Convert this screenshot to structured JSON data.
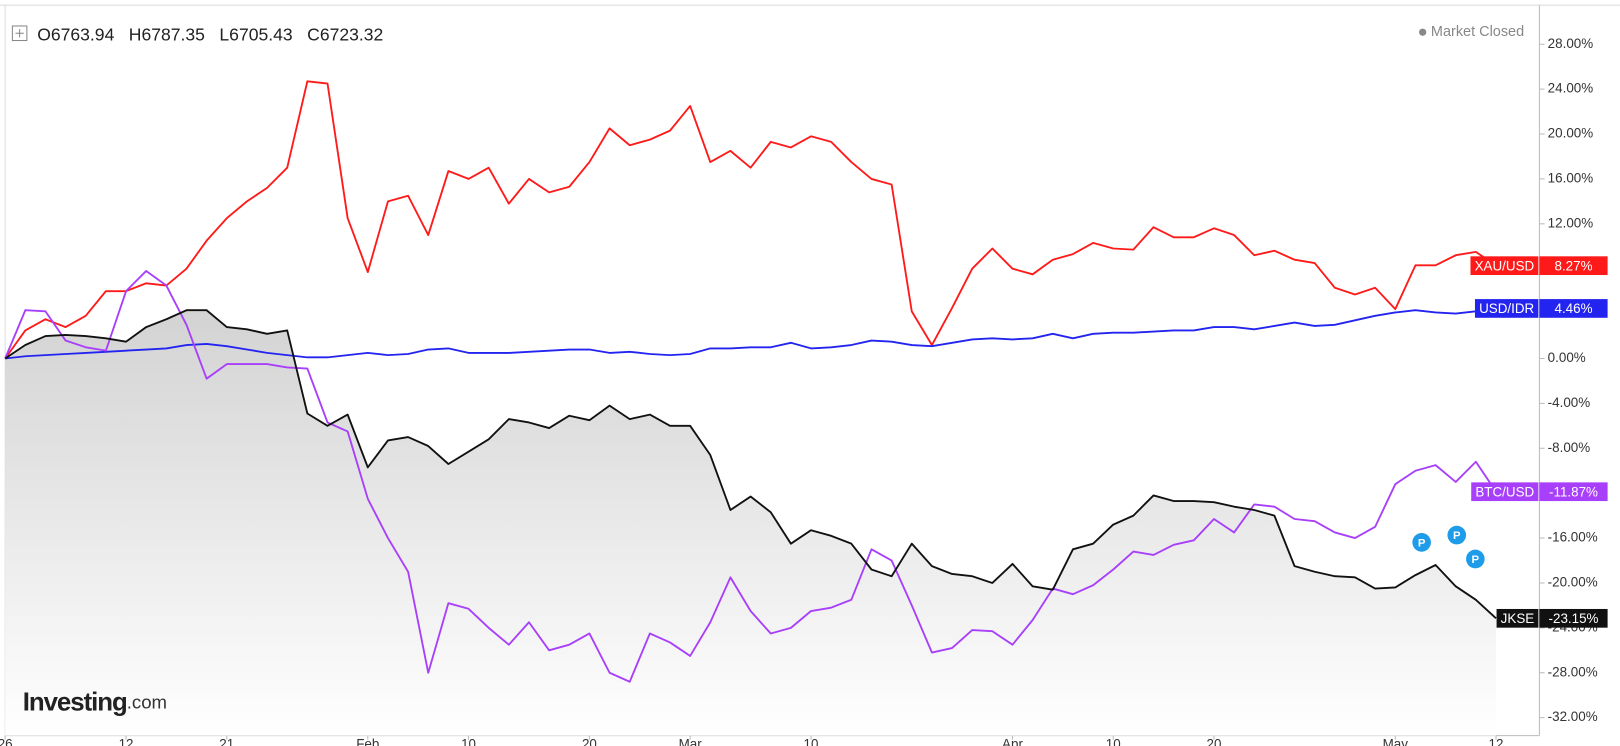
{
  "chart_data": {
    "type": "line",
    "ohlc": [
      {
        "key": "O",
        "value": "6763.94"
      },
      {
        "key": "H",
        "value": "6787.35"
      },
      {
        "key": "L",
        "value": "6705.43"
      },
      {
        "key": "C",
        "value": "6723.32"
      }
    ],
    "status": "Market Closed",
    "logo": {
      "name": "Investing",
      "suffix": ".com"
    },
    "markers": [
      "P",
      "P",
      "P"
    ],
    "categories": [
      "26",
      null,
      null,
      null,
      null,
      null,
      "12",
      null,
      null,
      null,
      null,
      "21",
      null,
      null,
      null,
      null,
      null,
      null,
      "Feb",
      null,
      null,
      null,
      null,
      "10",
      null,
      null,
      null,
      null,
      null,
      "20",
      null,
      null,
      null,
      null,
      "Mar",
      null,
      null,
      null,
      null,
      null,
      "10",
      null,
      null,
      null,
      null,
      null,
      null,
      null,
      null,
      null,
      "Apr",
      null,
      null,
      null,
      null,
      "10",
      null,
      null,
      null,
      null,
      "20",
      null,
      null,
      null,
      null,
      null,
      null,
      null,
      null,
      "May",
      null,
      null,
      null,
      null,
      "12"
    ],
    "ylim": [
      -33.6,
      31.2
    ],
    "yticks": [
      {
        "value": 28,
        "label": "28.00%"
      },
      {
        "value": 24,
        "label": "24.00%"
      },
      {
        "value": 20,
        "label": "20.00%"
      },
      {
        "value": 16,
        "label": "16.00%"
      },
      {
        "value": 12,
        "label": "12.00%"
      },
      {
        "value": 8,
        "label": "8.00%"
      },
      {
        "value": 4,
        "label": "4.00%"
      },
      {
        "value": 0,
        "label": "0.00%"
      },
      {
        "value": -4,
        "label": "-4.00%"
      },
      {
        "value": -8,
        "label": "-8.00%"
      },
      {
        "value": -12,
        "label": "-12.00%"
      },
      {
        "value": -16,
        "label": "-16.00%"
      },
      {
        "value": -20,
        "label": "-20.00%"
      },
      {
        "value": -24,
        "label": "-24.00%"
      },
      {
        "value": -28,
        "label": "-28.00%"
      },
      {
        "value": -32,
        "label": "-32.00%"
      }
    ],
    "grid": false,
    "series": [
      {
        "name": "XAU/USD",
        "color": "#ff1a1a",
        "values": [
          0,
          2.5,
          3.5,
          2.8,
          3.8,
          6,
          6,
          6.7,
          6.5,
          8,
          10.5,
          12.5,
          14,
          15.2,
          17,
          24.7,
          24.5,
          12.5,
          7.7,
          14,
          14.5,
          11,
          16.7,
          16,
          17,
          13.8,
          16,
          14.8,
          15.3,
          17.5,
          20.5,
          19,
          19.5,
          20.3,
          22.5,
          17.5,
          18.5,
          17,
          19.3,
          18.8,
          19.8,
          19.3,
          17.5,
          16,
          15.5,
          4.2,
          1.2,
          4.5,
          8,
          9.8,
          8,
          7.5,
          8.8,
          9.3,
          10.3,
          9.8,
          9.7,
          11.7,
          10.8,
          10.8,
          11.6,
          11,
          9.2,
          9.6,
          8.8,
          8.5,
          6.3,
          5.7,
          6.3,
          4.4,
          8.3,
          8.3,
          9.2,
          9.5,
          8.27
        ],
        "value_labels": [
          null,
          null,
          null,
          null,
          null,
          null,
          null,
          null,
          null,
          null,
          null,
          null,
          null,
          null,
          null,
          null,
          null,
          null,
          null,
          null,
          null,
          null,
          null,
          null,
          null,
          null,
          null,
          null,
          null,
          null,
          null,
          null,
          null,
          null,
          null,
          null,
          null,
          null,
          null,
          null,
          null,
          null,
          null,
          null,
          null,
          null,
          null,
          null,
          null,
          null,
          null,
          null,
          null,
          null,
          null,
          null,
          null,
          null,
          null,
          null,
          null,
          null,
          null,
          null,
          null,
          null,
          null,
          null,
          null,
          null,
          null,
          null,
          null,
          null,
          "8.27%"
        ]
      },
      {
        "name": "USD/IDR",
        "color": "#2424f0",
        "values": [
          0,
          0.2,
          0.3,
          0.4,
          0.5,
          0.6,
          0.7,
          0.8,
          0.9,
          1.2,
          1.3,
          1.1,
          0.8,
          0.5,
          0.3,
          0.1,
          0.1,
          0.3,
          0.5,
          0.3,
          0.4,
          0.8,
          0.9,
          0.5,
          0.5,
          0.5,
          0.6,
          0.7,
          0.8,
          0.8,
          0.5,
          0.6,
          0.4,
          0.3,
          0.4,
          0.9,
          0.9,
          1.0,
          1.0,
          1.4,
          0.9,
          1.0,
          1.2,
          1.6,
          1.5,
          1.2,
          1.1,
          1.4,
          1.7,
          1.8,
          1.7,
          1.8,
          2.2,
          1.8,
          2.2,
          2.3,
          2.3,
          2.4,
          2.5,
          2.5,
          2.8,
          2.8,
          2.6,
          2.9,
          3.2,
          2.9,
          3.0,
          3.4,
          3.8,
          4.1,
          4.3,
          4.1,
          4.0,
          4.2,
          4.46
        ],
        "value_labels": [
          null,
          null,
          null,
          null,
          null,
          null,
          null,
          null,
          null,
          null,
          null,
          null,
          null,
          null,
          null,
          null,
          null,
          null,
          null,
          null,
          null,
          null,
          null,
          null,
          null,
          null,
          null,
          null,
          null,
          null,
          null,
          null,
          null,
          null,
          null,
          null,
          null,
          null,
          null,
          null,
          null,
          null,
          null,
          null,
          null,
          null,
          null,
          null,
          null,
          null,
          null,
          null,
          null,
          null,
          null,
          null,
          null,
          null,
          null,
          null,
          null,
          null,
          null,
          null,
          null,
          null,
          null,
          null,
          null,
          null,
          null,
          null,
          null,
          null,
          "4.46%"
        ]
      },
      {
        "name": "BTC/USD",
        "color": "#a83ffa",
        "values": [
          0,
          4.3,
          4.2,
          1.6,
          1.0,
          0.7,
          6,
          7.8,
          6.5,
          3,
          -1.8,
          -0.5,
          -0.5,
          -0.5,
          -0.8,
          -0.9,
          -5.7,
          -6.5,
          -12.5,
          -16,
          -19,
          -28,
          -21.8,
          -22.3,
          -24,
          -25.5,
          -23.5,
          -26,
          -25.5,
          -24.5,
          -28,
          -28.8,
          -24.5,
          -25.3,
          -26.5,
          -23.5,
          -19.5,
          -22.5,
          -24.5,
          -24,
          -22.5,
          -22.2,
          -21.5,
          -17,
          -18,
          -22,
          -26.2,
          -25.8,
          -24.2,
          -24.3,
          -25.5,
          -23.3,
          -20.5,
          -21,
          -20.2,
          -18.8,
          -17.2,
          -17.5,
          -16.6,
          -16.2,
          -14.3,
          -15.5,
          -13,
          -13.2,
          -14.3,
          -14.5,
          -15.5,
          -16,
          -15,
          -11.2,
          -10,
          -9.5,
          -11,
          -9.2,
          -11.87
        ],
        "value_labels": [
          null,
          null,
          null,
          null,
          null,
          null,
          null,
          null,
          null,
          null,
          null,
          null,
          null,
          null,
          null,
          null,
          null,
          null,
          null,
          null,
          null,
          null,
          null,
          null,
          null,
          null,
          null,
          null,
          null,
          null,
          null,
          null,
          null,
          null,
          null,
          null,
          null,
          null,
          null,
          null,
          null,
          null,
          null,
          null,
          null,
          null,
          null,
          null,
          null,
          null,
          null,
          null,
          null,
          null,
          null,
          null,
          null,
          null,
          null,
          null,
          null,
          null,
          null,
          null,
          null,
          null,
          null,
          null,
          null,
          null,
          null,
          null,
          null,
          null,
          "-11.87%"
        ]
      },
      {
        "name": "JKSE",
        "color": "#111111",
        "area": true,
        "values": [
          0,
          1.2,
          2.0,
          2.1,
          2.0,
          1.8,
          1.5,
          2.8,
          3.5,
          4.3,
          4.3,
          2.8,
          2.6,
          2.2,
          2.5,
          -4.9,
          -6,
          -5,
          -9.7,
          -7.3,
          -7,
          -7.8,
          -9.4,
          -8.3,
          -7.2,
          -5.4,
          -5.7,
          -6.2,
          -5.1,
          -5.5,
          -4.2,
          -5.4,
          -5,
          -6,
          -6,
          -8.6,
          -13.5,
          -12.3,
          -13.7,
          -16.5,
          -15.3,
          -15.8,
          -16.5,
          -18.8,
          -19.4,
          -16.5,
          -18.5,
          -19.2,
          -19.4,
          -20,
          -18.3,
          -20.3,
          -20.6,
          -17,
          -16.5,
          -14.8,
          -14,
          -12.2,
          -12.7,
          -12.7,
          -12.8,
          -13.2,
          -13.5,
          -14,
          -18.5,
          -19,
          -19.4,
          -19.5,
          -20.5,
          -20.4,
          -19.3,
          -18.4,
          -20.3,
          -21.5,
          -23.15
        ],
        "value_labels": [
          null,
          null,
          null,
          null,
          null,
          null,
          null,
          null,
          null,
          null,
          null,
          null,
          null,
          null,
          null,
          null,
          null,
          null,
          null,
          null,
          null,
          null,
          null,
          null,
          null,
          null,
          null,
          null,
          null,
          null,
          null,
          null,
          null,
          null,
          null,
          null,
          null,
          null,
          null,
          null,
          null,
          null,
          null,
          null,
          null,
          null,
          null,
          null,
          null,
          null,
          null,
          null,
          null,
          null,
          null,
          null,
          null,
          null,
          null,
          null,
          null,
          null,
          null,
          null,
          null,
          null,
          null,
          null,
          null,
          null,
          null,
          null,
          null,
          null,
          "-23.15%"
        ]
      }
    ]
  }
}
